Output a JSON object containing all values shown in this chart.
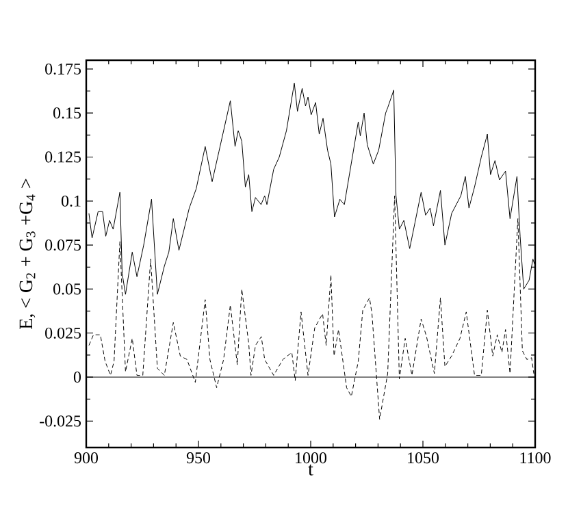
{
  "chart_data": {
    "type": "line",
    "xlabel": "t",
    "ylabel": "E, < G$_{2}$ + G$_{3}$ +G$_{4}$ >",
    "xlim": [
      900,
      1100
    ],
    "ylim": [
      -0.04,
      0.18
    ],
    "xticks": [
      900,
      950,
      1000,
      1050,
      1100
    ],
    "yticks": [
      -0.025,
      0,
      0.025,
      0.05,
      0.075,
      0.1,
      0.125,
      0.15,
      0.175
    ],
    "grid": false,
    "legend": false,
    "marker": "none",
    "ref_lines": [
      {
        "axis": "y",
        "value": 0,
        "color": "#000000",
        "line_style": "solid"
      }
    ],
    "series": [
      {
        "color": "#000000",
        "line_style": "solid",
        "x": [
          901.2,
          902.6,
          905.3,
          907.3,
          908.7,
          910.4,
          912,
          915,
          916,
          917.5,
          920.5,
          922.6,
          925.6,
          929.1,
          931.7,
          934.8,
          936.8,
          938.8,
          941.3,
          945.9,
          949,
          953,
          956.1,
          959.1,
          964.2,
          966.3,
          967.7,
          969.3,
          970.9,
          972.4,
          973.8,
          975.4,
          977.9,
          979.5,
          980.5,
          983.5,
          986,
          989.2,
          992.7,
          994.1,
          996.2,
          997.7,
          998.8,
          1000.2,
          1002.2,
          1003.8,
          1005.5,
          1007.5,
          1009,
          1010.6,
          1013,
          1015,
          1021.2,
          1022.1,
          1023.8,
          1025.2,
          1027.9,
          1030.3,
          1033.4,
          1034.3,
          1037,
          1038,
          1039.5,
          1041.5,
          1044.1,
          1046.5,
          1049.2,
          1051.2,
          1053.2,
          1054.7,
          1057.8,
          1059.8,
          1062.8,
          1066.9,
          1068.9,
          1070.5,
          1073,
          1076,
          1078.7,
          1080.1,
          1082.1,
          1084.1,
          1086.8,
          1088.8,
          1091.9,
          1093.3,
          1094.9,
          1097.3,
          1099,
          1099.8
        ],
        "values": [
          0.093,
          0.079,
          0.094,
          0.094,
          0.08,
          0.089,
          0.084,
          0.105,
          0.059,
          0.047,
          0.071,
          0.057,
          0.075,
          0.101,
          0.047,
          0.063,
          0.071,
          0.09,
          0.072,
          0.096,
          0.107,
          0.131,
          0.111,
          0.128,
          0.157,
          0.131,
          0.14,
          0.134,
          0.108,
          0.115,
          0.094,
          0.102,
          0.098,
          0.103,
          0.098,
          0.118,
          0.125,
          0.14,
          0.167,
          0.151,
          0.164,
          0.154,
          0.159,
          0.149,
          0.156,
          0.138,
          0.147,
          0.129,
          0.121,
          0.091,
          0.101,
          0.098,
          0.145,
          0.137,
          0.15,
          0.132,
          0.121,
          0.129,
          0.15,
          0.153,
          0.163,
          0.103,
          0.084,
          0.089,
          0.073,
          0.088,
          0.105,
          0.092,
          0.096,
          0.086,
          0.106,
          0.075,
          0.093,
          0.103,
          0.114,
          0.096,
          0.108,
          0.125,
          0.138,
          0.115,
          0.123,
          0.112,
          0.117,
          0.09,
          0.114,
          0.08,
          0.05,
          0.055,
          0.067,
          0.064
        ]
      },
      {
        "color": "#000000",
        "line_style": "dashed",
        "x": [
          901.2,
          903.2,
          906.3,
          908.4,
          910.8,
          912.4,
          915,
          917.5,
          920.5,
          922.6,
          925.2,
          928.7,
          931.7,
          934.8,
          938.8,
          941.9,
          944.9,
          948.6,
          953,
          955.1,
          958.1,
          961.2,
          964.2,
          967.3,
          969.3,
          972.4,
          973.4,
          975.4,
          978,
          979.5,
          983.5,
          987.6,
          991.6,
          993.1,
          995.7,
          998.8,
          1001.8,
          1005.3,
          1006.9,
          1009,
          1010.4,
          1012.4,
          1016,
          1018.1,
          1021.2,
          1023.2,
          1026.2,
          1027.3,
          1030.7,
          1034.3,
          1037.4,
          1039.5,
          1042.1,
          1045.1,
          1049.2,
          1051.6,
          1055.1,
          1057.8,
          1059.8,
          1062.8,
          1066.5,
          1069.3,
          1073,
          1076,
          1078.7,
          1081.1,
          1083.1,
          1085.2,
          1086.8,
          1088.8,
          1092.3,
          1094.3,
          1096.3,
          1098.4,
          1099.4
        ],
        "values": [
          0.018,
          0.024,
          0.024,
          0.009,
          0.001,
          0.009,
          0.077,
          0.003,
          0.022,
          0.001,
          0.001,
          0.067,
          0.005,
          0.001,
          0.031,
          0.012,
          0.01,
          -0.003,
          0.044,
          0.01,
          -0.006,
          0.01,
          0.041,
          0.007,
          0.05,
          0.019,
          0.001,
          0.018,
          0.023,
          0.01,
          0.001,
          0.01,
          0.014,
          -0.002,
          0.037,
          0.001,
          0.028,
          0.036,
          0.018,
          0.058,
          0.012,
          0.027,
          -0.006,
          -0.011,
          0.009,
          0.038,
          0.045,
          0.036,
          -0.024,
          0.002,
          0.103,
          -0.001,
          0.022,
          0.001,
          0.033,
          0.023,
          0.002,
          0.045,
          0.006,
          0.012,
          0.022,
          0.037,
          0.001,
          0.001,
          0.038,
          0.012,
          0.024,
          0.014,
          0.027,
          0.002,
          0.09,
          0.015,
          0.01,
          0.011,
          0.002
        ]
      }
    ]
  }
}
